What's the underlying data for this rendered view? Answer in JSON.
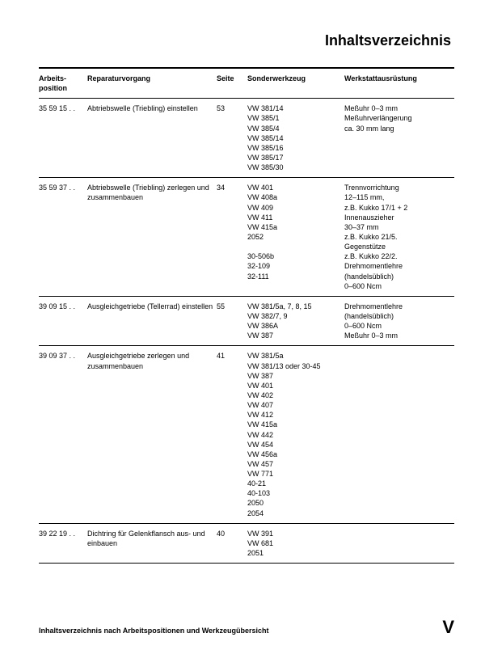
{
  "title": "Inhaltsverzeichnis",
  "columns": {
    "pos": "Arbeits-\nposition",
    "rep": "Reparaturvorgang",
    "page": "Seite",
    "tool": "Sonderwerkzeug",
    "equip": "Werkstattausrüstung"
  },
  "rows": [
    {
      "pos": "35 59 15 . .",
      "rep": "Abtriebswelle (Triebling) einstellen",
      "page": "53",
      "tool": [
        "VW 381/14",
        "VW 385/1",
        "VW 385/4",
        "VW 385/14",
        "VW 385/16",
        "VW 385/17",
        "VW 385/30"
      ],
      "equip": [
        "Meßuhr 0–3 mm",
        "Meßuhrverlängerung",
        "ca. 30 mm lang"
      ]
    },
    {
      "pos": "35 59 37 . .",
      "rep": "Abtriebswelle (Triebling) zerlegen und zusammenbauen",
      "page": "34",
      "tool": [
        "VW 401",
        "VW 408a",
        "VW 409",
        "VW 411",
        "VW 415a",
        "2052",
        "",
        "30-506b",
        "32-109",
        "32-111"
      ],
      "equip": [
        "Trennvorrichtung",
        "12–115 mm,",
        "z.B. Kukko 17/1 + 2",
        "Innenauszieher",
        "30–37 mm",
        "z.B. Kukko 21/5.",
        "Gegenstütze",
        "z.B. Kukko 22/2.",
        "Drehmomentlehre",
        "(handelsüblich)",
        "0–600 Ncm"
      ]
    },
    {
      "pos": "39 09 15 . .",
      "rep": "Ausgleichgetriebe (Tellerrad) einstellen",
      "page": "55",
      "tool": [
        "VW 381/5a, 7, 8, 15",
        "VW 382/7, 9",
        "VW 386A",
        "VW 387"
      ],
      "equip": [
        "Drehmomentlehre",
        "(handelsüblich)",
        "0–600 Ncm",
        "Meßuhr 0–3 mm"
      ]
    },
    {
      "pos": "39 09 37 . .",
      "rep": "Ausgleichgetriebe zerlegen und zusammenbauen",
      "page": "41",
      "tool": [
        "VW 381/5a",
        "VW 381/13 oder 30-45",
        "VW 387",
        "VW 401",
        "VW 402",
        "VW 407",
        "VW 412",
        "VW 415a",
        "VW 442",
        "VW 454",
        "VW 456a",
        "VW 457",
        "VW 771",
        "40-21",
        "40-103",
        "2050",
        "2054"
      ],
      "equip": []
    },
    {
      "pos": "39 22 19 . .",
      "rep": "Dichtring für Gelenkflansch aus- und einbauen",
      "page": "40",
      "tool": [
        "VW 391",
        "VW 681",
        "2051"
      ],
      "equip": []
    }
  ],
  "footer": {
    "text": "Inhaltsverzeichnis nach Arbeitspositionen und Werkzeugübersicht",
    "roman": "V"
  }
}
